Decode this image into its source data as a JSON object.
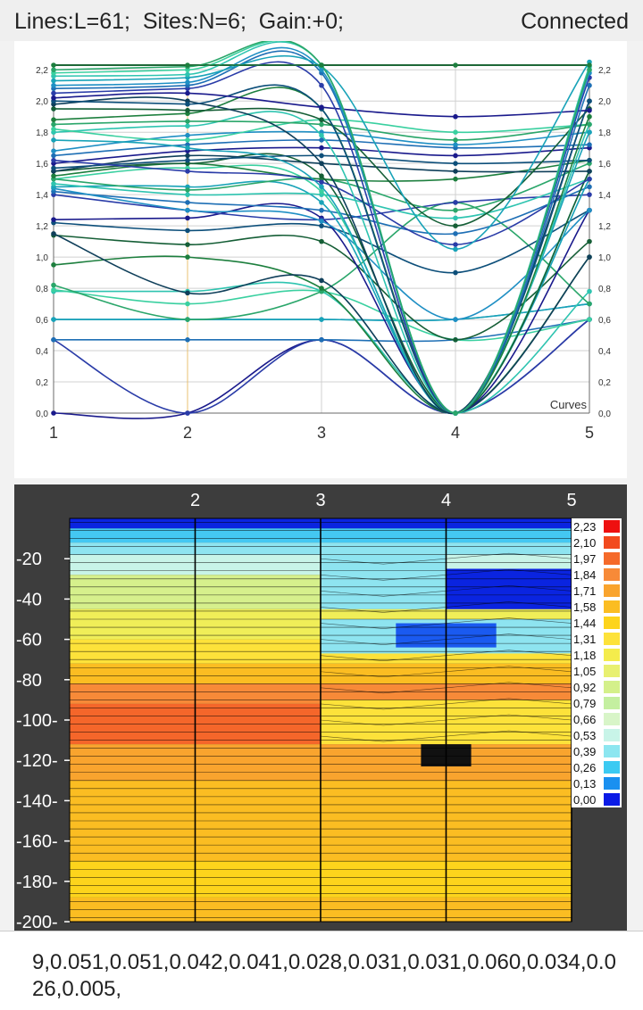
{
  "status": {
    "info": "Lines:L=61;  Sites:N=6;  Gain:+0;",
    "connection": "Connected"
  },
  "curves_chart": {
    "type": "line",
    "x_ticks": [
      "1",
      "2",
      "3",
      "4",
      "5"
    ],
    "y_ticks": [
      "0,0",
      "0,2",
      "0,4",
      "0,6",
      "0,8",
      "1,0",
      "1,2",
      "1,4",
      "1,6",
      "1,8",
      "2,0",
      "2,2"
    ],
    "legend": "Curves",
    "ylim": [
      0,
      2.23
    ],
    "colors": [
      "#1a1a8c",
      "#2a3ca8",
      "#1e6fb5",
      "#1f8fc4",
      "#19a3b8",
      "#2ec4b0",
      "#3ad0a0",
      "#2aa66a",
      "#1d7f3e",
      "#155e36",
      "#0f3f5a",
      "#0d4f7a"
    ],
    "series": [
      [
        0.0,
        0.0,
        0.47,
        0.0,
        0.6
      ],
      [
        0.47,
        0.0,
        0.47,
        0.0,
        0.6
      ],
      [
        0.47,
        0.47,
        0.47,
        0.47,
        0.6
      ],
      [
        0.6,
        0.6,
        0.6,
        0.6,
        0.7
      ],
      [
        0.6,
        0.6,
        0.6,
        0.6,
        0.7
      ],
      [
        0.78,
        0.78,
        0.78,
        0.0,
        0.78
      ],
      [
        0.79,
        0.7,
        0.78,
        0.47,
        0.6
      ],
      [
        0.82,
        0.6,
        0.78,
        1.35,
        0.7
      ],
      [
        0.95,
        1.0,
        0.8,
        0.0,
        1.0
      ],
      [
        1.14,
        1.08,
        1.1,
        0.47,
        1.1
      ],
      [
        1.15,
        0.77,
        0.85,
        0.0,
        1.0
      ],
      [
        1.22,
        1.17,
        1.2,
        0.9,
        1.3
      ],
      [
        1.24,
        1.25,
        1.25,
        0.0,
        1.3
      ],
      [
        1.4,
        1.3,
        1.24,
        1.35,
        1.4
      ],
      [
        1.42,
        1.35,
        1.3,
        1.15,
        1.45
      ],
      [
        1.44,
        1.3,
        1.23,
        0.6,
        1.3
      ],
      [
        1.45,
        1.45,
        1.35,
        0.0,
        1.5
      ],
      [
        1.47,
        1.4,
        1.4,
        1.25,
        1.5
      ],
      [
        1.5,
        1.57,
        1.42,
        0.0,
        1.55
      ],
      [
        1.5,
        1.43,
        1.5,
        1.3,
        1.6
      ],
      [
        1.52,
        1.6,
        1.5,
        1.5,
        1.62
      ],
      [
        1.55,
        1.6,
        1.52,
        0.0,
        1.55
      ],
      [
        1.55,
        1.65,
        1.6,
        1.55,
        1.55
      ],
      [
        1.57,
        1.62,
        1.65,
        1.6,
        1.62
      ],
      [
        1.6,
        1.68,
        1.7,
        1.65,
        1.7
      ],
      [
        1.62,
        1.55,
        1.48,
        1.08,
        1.5
      ],
      [
        1.65,
        1.72,
        1.75,
        1.7,
        1.72
      ],
      [
        1.68,
        1.78,
        1.8,
        1.72,
        1.8
      ],
      [
        1.75,
        1.7,
        1.45,
        0.0,
        1.8
      ],
      [
        1.8,
        1.84,
        1.78,
        0.0,
        1.85
      ],
      [
        1.82,
        1.75,
        1.88,
        1.8,
        1.85
      ],
      [
        1.85,
        1.87,
        1.85,
        1.75,
        1.85
      ],
      [
        1.88,
        1.92,
        1.95,
        0.0,
        1.9
      ],
      [
        1.95,
        1.94,
        1.88,
        1.2,
        1.95
      ],
      [
        1.98,
        2.0,
        1.6,
        0.0,
        2.0
      ],
      [
        2.0,
        1.98,
        1.95,
        0.0,
        2.0
      ],
      [
        2.02,
        2.05,
        1.96,
        1.9,
        1.94
      ],
      [
        2.05,
        2.08,
        2.1,
        0.0,
        2.15
      ],
      [
        2.08,
        2.1,
        2.18,
        0.0,
        2.1
      ],
      [
        2.1,
        2.12,
        2.2,
        0.0,
        2.18
      ],
      [
        2.13,
        2.15,
        2.22,
        1.05,
        2.25
      ],
      [
        2.16,
        2.17,
        2.23,
        0.0,
        2.22
      ],
      [
        2.18,
        2.2,
        2.23,
        0.0,
        2.2
      ],
      [
        2.2,
        2.22,
        2.23,
        0.0,
        2.2
      ],
      [
        2.23,
        2.23,
        2.23,
        2.23,
        2.23
      ]
    ]
  },
  "contour_chart": {
    "type": "heatmap",
    "x_ticks": [
      "2",
      "3",
      "4",
      "5"
    ],
    "y_ticks": [
      "-20",
      "-40",
      "-60",
      "-80",
      "-100-",
      "-120-",
      "-140-",
      "-160-",
      "-180-",
      "-200-"
    ],
    "depth_range": [
      -200,
      0
    ],
    "legend": [
      "2,23",
      "2,10",
      "1,97",
      "1,84",
      "1,71",
      "1,58",
      "1,44",
      "1,31",
      "1,18",
      "1,05",
      "0,92",
      "0,79",
      "0,66",
      "0,53",
      "0,39",
      "0,26",
      "0,13",
      "0,00"
    ],
    "legend_colors": [
      "#ee1010",
      "#f24a1e",
      "#f56a2a",
      "#f78a38",
      "#f9a42e",
      "#fbbd22",
      "#fdd41c",
      "#fde23a",
      "#f4ec4c",
      "#e8f070",
      "#d4f08a",
      "#c4efa0",
      "#d8f5c8",
      "#c8f4e8",
      "#8ce6f0",
      "#3ccaf2",
      "#1a90f0",
      "#0a1ae6"
    ],
    "rows": [
      {
        "y1": 0,
        "y2": 5,
        "color": "#0a24e0"
      },
      {
        "y1": 5,
        "y2": 12,
        "color": "#44c8f2"
      },
      {
        "y1": 12,
        "y2": 18,
        "color": "#8ee4f0"
      },
      {
        "y1": 18,
        "y2": 28,
        "color": "#c8f4e8"
      },
      {
        "y1": 28,
        "y2": 45,
        "color": "#d6f08c"
      },
      {
        "y1": 45,
        "y2": 60,
        "color": "#f0ee58"
      },
      {
        "y1": 60,
        "y2": 72,
        "color": "#fde23a"
      },
      {
        "y1": 72,
        "y2": 82,
        "color": "#fbbd22"
      },
      {
        "y1": 82,
        "y2": 92,
        "color": "#f78a38"
      },
      {
        "y1": 92,
        "y2": 112,
        "color": "#f5662a"
      },
      {
        "y1": 112,
        "y2": 130,
        "color": "#f9a42e"
      },
      {
        "y1": 130,
        "y2": 170,
        "color": "#fbbd22"
      },
      {
        "y1": 170,
        "y2": 188,
        "color": "#fdd41c"
      },
      {
        "y1": 188,
        "y2": 200,
        "color": "#fbbd22"
      }
    ],
    "regions": [
      {
        "x1": 3,
        "x2": 4,
        "y1": 18,
        "y2": 45,
        "color": "#8ee4f0"
      },
      {
        "x1": 4,
        "x2": 5,
        "y1": 25,
        "y2": 45,
        "color": "#0a24e0"
      },
      {
        "x1": 3,
        "x2": 5,
        "y1": 50,
        "y2": 67,
        "color": "#8ee4f0"
      },
      {
        "x1": 3.6,
        "x2": 4.4,
        "y1": 52,
        "y2": 64,
        "color": "#1a5af0"
      },
      {
        "x1": 3,
        "x2": 5,
        "y1": 90,
        "y2": 112,
        "color": "#fde23a"
      },
      {
        "x1": 3.8,
        "x2": 4.2,
        "y1": 112,
        "y2": 123,
        "color": "#111111"
      }
    ]
  },
  "footer": {
    "text": "9,0.051,0.051,0.042,0.041,0.028,0.031,0.031,0.060,0.034,0.026,0.005,"
  }
}
